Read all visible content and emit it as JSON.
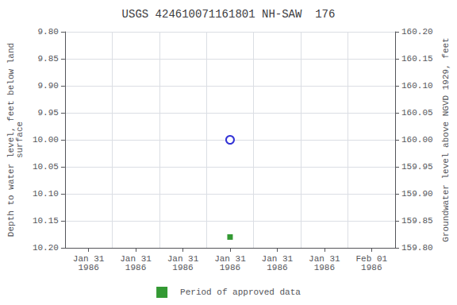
{
  "chart_data": {
    "type": "scatter",
    "title": "USGS 424610071161801 NH-SAW  176",
    "ylabel": "Depth to water level, feet below land\nsurface",
    "y2label": "Groundwater level above NGVD 1929, feet",
    "categories": [
      "Jan 31\n1986",
      "Jan 31\n1986",
      "Jan 31\n1986",
      "Jan 31\n1986",
      "Jan 31\n1986",
      "Jan 31\n1986",
      "Feb 01\n1986"
    ],
    "series": [
      {
        "color": "#0000cc",
        "marker": "emptyCircle",
        "values": [
          null,
          null,
          null,
          10.0,
          null,
          null,
          null
        ]
      },
      {
        "name": "Period of approved data",
        "color": "#008000",
        "marker": "square",
        "values": [
          null,
          null,
          null,
          10.18,
          null,
          null,
          null
        ]
      }
    ],
    "ylim": [
      10.2,
      9.8
    ],
    "yticks": [
      {
        "value": 9.8,
        "label": "9.80"
      },
      9.85,
      {
        "value": 9.9,
        "label": "9.90"
      },
      9.95,
      {
        "value": 10.0,
        "label": "10.00"
      },
      10.05,
      {
        "value": 10.1,
        "label": "10.10"
      },
      10.15,
      {
        "value": 10.2,
        "label": "10.20"
      }
    ],
    "y2lim": [
      159.8,
      160.2
    ],
    "y2ticks": [
      {
        "value": 160.2,
        "label": "160.20"
      },
      160.15,
      {
        "value": 160.1,
        "label": "160.10"
      },
      160.05,
      {
        "value": 160.0,
        "label": "160.00"
      },
      159.95,
      {
        "value": 159.9,
        "label": "159.90"
      },
      159.85,
      {
        "value": 159.8,
        "label": "159.80"
      }
    ],
    "grid": true,
    "legend": "bottom"
  }
}
